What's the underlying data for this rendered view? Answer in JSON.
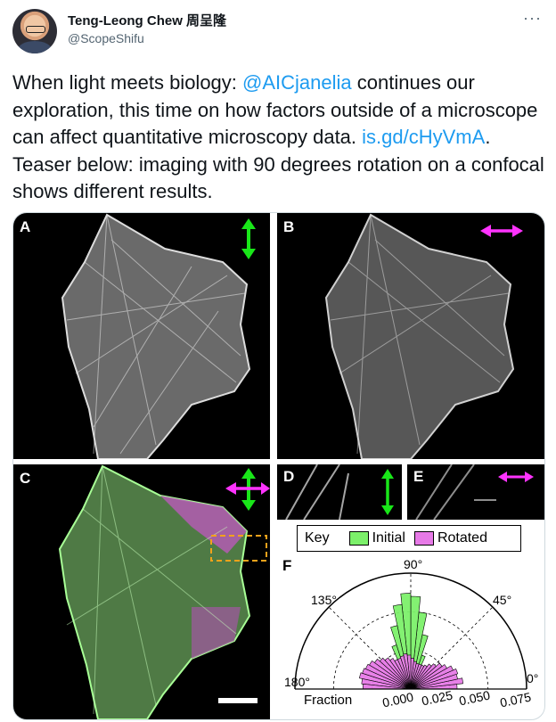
{
  "tweet": {
    "author_name": "Teng-Leong Chew 周呈隆",
    "author_handle": "@ScopeShifu",
    "more_icon": "···",
    "text_parts": [
      {
        "text": "When light meets biology: ",
        "link": false
      },
      {
        "text": "@AICjanelia",
        "link": true
      },
      {
        "text": " continues our exploration, this time on how factors outside of a microscope can affect quantitative microscopy data. ",
        "link": false
      },
      {
        "text": "is.gd/cHyVmA",
        "link": true
      },
      {
        "text": ". Teaser below: imaging with 90 degrees rotation on a confocal shows different results.",
        "link": false
      }
    ]
  },
  "figure": {
    "panels": {
      "A": "A",
      "B": "B",
      "C": "C",
      "D": "D",
      "E": "E",
      "F": "F"
    },
    "key": {
      "title": "Key",
      "initial": "Initial",
      "rotated": "Rotated"
    },
    "colors": {
      "initial": "#7cf06a",
      "rotated": "#e77ae7",
      "arrow_green": "#19e619",
      "arrow_magenta": "#ff33ff",
      "roi_box": "#f2a21b"
    },
    "polar": {
      "angle_labels": [
        "90°",
        "45°",
        "135°",
        "180°",
        "0°"
      ],
      "axis_title": "Fraction",
      "radial_ticks": [
        "0.000",
        "0.025",
        "0.050",
        "0.075"
      ]
    }
  },
  "chart_data": {
    "type": "polar-histogram",
    "title": "",
    "axis_label": "Fraction",
    "angle_range_deg": [
      0,
      180
    ],
    "radial_range": [
      0,
      0.075
    ],
    "radial_ticks": [
      0.0,
      0.025,
      0.05,
      0.075
    ],
    "bin_width_deg": 6,
    "bin_centers_deg": [
      3,
      9,
      15,
      21,
      27,
      33,
      39,
      45,
      51,
      57,
      63,
      69,
      75,
      81,
      87,
      93,
      99,
      105,
      111,
      117,
      123,
      129,
      135,
      141,
      147,
      153,
      159,
      165,
      171,
      177
    ],
    "series": [
      {
        "name": "Initial",
        "values": [
          0.0,
          0.0,
          0.001,
          0.002,
          0.002,
          0.003,
          0.004,
          0.006,
          0.008,
          0.011,
          0.016,
          0.023,
          0.036,
          0.05,
          0.06,
          0.062,
          0.055,
          0.042,
          0.03,
          0.021,
          0.015,
          0.01,
          0.007,
          0.005,
          0.004,
          0.003,
          0.002,
          0.001,
          0.001,
          0.0
        ]
      },
      {
        "name": "Rotated",
        "values": [
          0.03,
          0.034,
          0.031,
          0.032,
          0.03,
          0.027,
          0.025,
          0.022,
          0.02,
          0.018,
          0.017,
          0.017,
          0.017,
          0.018,
          0.02,
          0.022,
          0.023,
          0.022,
          0.021,
          0.021,
          0.023,
          0.025,
          0.027,
          0.029,
          0.031,
          0.032,
          0.033,
          0.034,
          0.032,
          0.031
        ]
      }
    ]
  }
}
